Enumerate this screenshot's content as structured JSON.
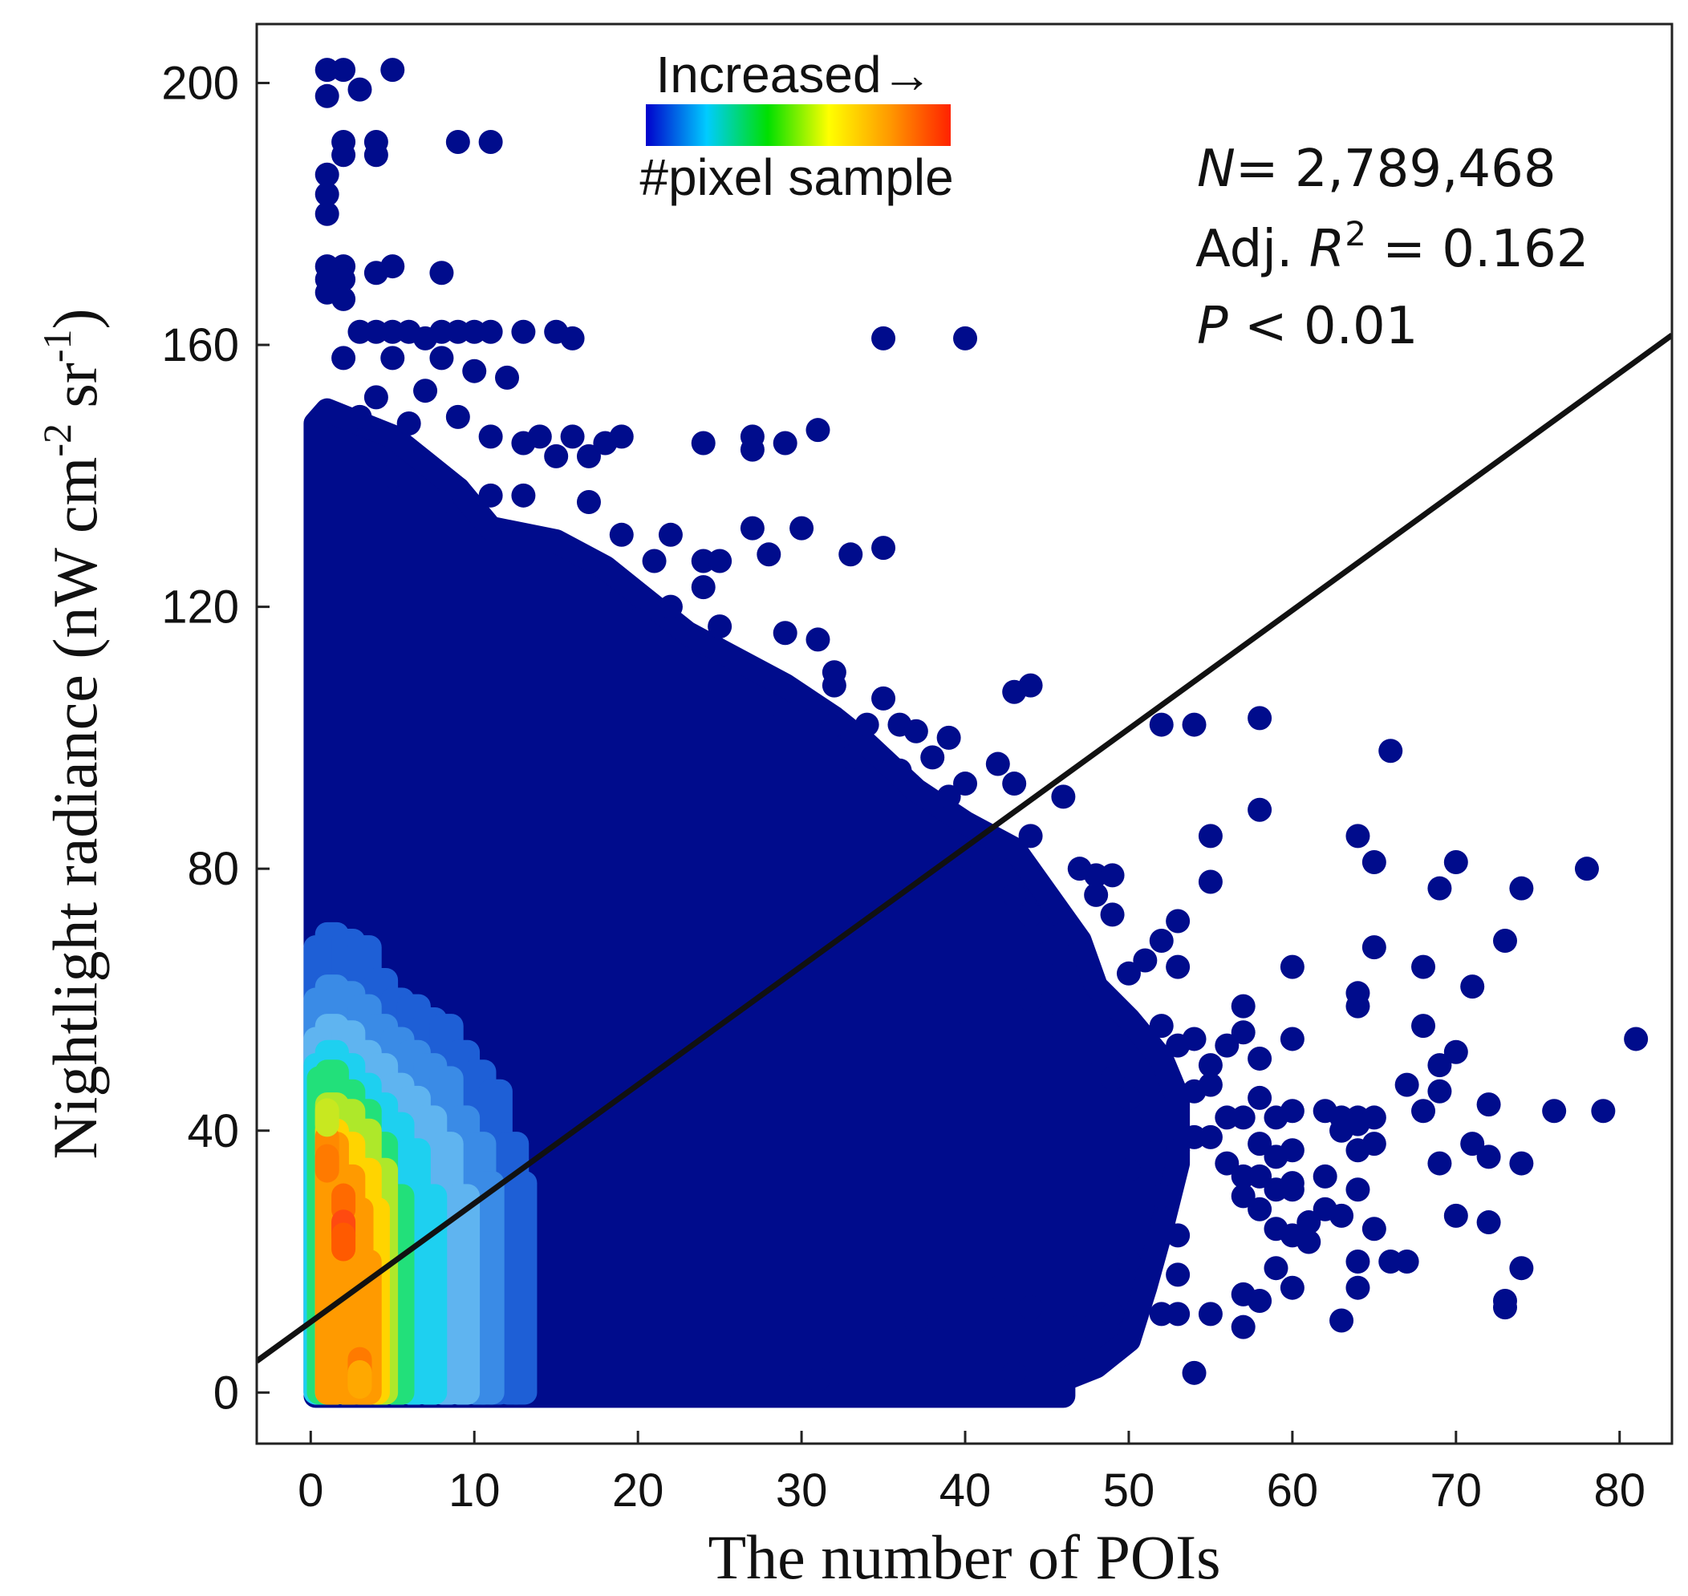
{
  "chart_data": {
    "type": "scatter",
    "title": "",
    "xlabel": "The number of POIs",
    "ylabel_main": "Nightlight radiance (nW cm",
    "ylabel_sup1": "-2",
    "ylabel_mid": " sr",
    "ylabel_sup2": "-1",
    "ylabel_close": ")",
    "xlim": [
      -3.3,
      83.2
    ],
    "ylim": [
      -7.8,
      209
    ],
    "x_ticks": [
      0,
      10,
      20,
      30,
      40,
      50,
      60,
      70,
      80
    ],
    "y_ticks": [
      0,
      40,
      80,
      120,
      160,
      200
    ],
    "grid": false,
    "colorscale": [
      "#0000cc",
      "#00ccff",
      "#00e000",
      "#ffff00",
      "#ff9900",
      "#ff2200"
    ],
    "colors": {
      "low": "#000c8c",
      "regression": "#111111"
    },
    "legend": {
      "position": "top-center",
      "top_label": "Increased→",
      "bottom_label": "#pixel sample"
    },
    "stats": {
      "n_label": "N",
      "n_value": "= 2,789,468",
      "r2_prefix": "Adj. ",
      "r2_symbol": "R",
      "r2_sup": "2",
      "r2_value": " = 0.162",
      "p_symbol": "P",
      "p_value": " < 0.01"
    },
    "regression": {
      "x": [
        -3.3,
        83.2
      ],
      "y": [
        4.8,
        161.5
      ]
    },
    "dense_region": {
      "description_free": true,
      "upper_bound": [
        [
          0.3,
          148
        ],
        [
          1,
          150
        ],
        [
          3,
          148
        ],
        [
          5,
          146
        ],
        [
          7,
          142
        ],
        [
          9,
          138
        ],
        [
          11,
          132
        ],
        [
          15,
          130
        ],
        [
          18,
          126
        ],
        [
          20,
          122
        ],
        [
          23,
          116
        ],
        [
          26,
          112
        ],
        [
          29,
          108
        ],
        [
          32,
          103
        ],
        [
          34,
          99
        ],
        [
          37,
          92
        ],
        [
          40,
          87
        ],
        [
          43,
          83
        ],
        [
          45,
          76
        ],
        [
          47,
          69
        ],
        [
          48,
          62
        ],
        [
          50,
          57
        ],
        [
          52,
          51
        ],
        [
          53,
          45
        ],
        [
          53,
          35
        ],
        [
          52,
          25
        ],
        [
          51,
          16
        ],
        [
          50,
          8
        ],
        [
          48,
          4
        ],
        [
          46,
          2
        ]
      ],
      "lower_y": 0
    },
    "density_levels": [
      {
        "level": 0,
        "color": "#1e5fd6",
        "x": [
          0.3,
          1,
          2,
          3,
          4,
          5,
          6,
          7,
          8,
          9,
          10,
          11,
          12,
          12.5
        ],
        "top": [
          68,
          70,
          69,
          68,
          63,
          60,
          59,
          57,
          56,
          52,
          49,
          46,
          38,
          32
        ]
      },
      {
        "level": 1,
        "color": "#3a8be6",
        "x": [
          0.3,
          1,
          2,
          3,
          4,
          5,
          6,
          7,
          8,
          9,
          10,
          10.5
        ],
        "top": [
          60,
          62,
          61,
          59,
          56,
          54,
          52,
          50,
          48,
          42,
          38,
          32
        ]
      },
      {
        "level": 2,
        "color": "#5fb4f0",
        "x": [
          0.3,
          1,
          2,
          3,
          4,
          5,
          6,
          7,
          8,
          9
        ],
        "top": [
          54,
          56,
          55,
          52,
          50,
          47,
          45,
          42,
          38,
          30
        ]
      },
      {
        "level": 3,
        "color": "#1ed0f0",
        "x": [
          0.3,
          1,
          2,
          3,
          4,
          5,
          6,
          7
        ],
        "top": [
          50,
          52,
          50,
          47,
          44,
          41,
          37,
          30
        ]
      },
      {
        "level": 4,
        "color": "#22e07a",
        "x": [
          0.5,
          1,
          2,
          3,
          4,
          5
        ],
        "top": [
          48,
          49,
          46,
          43,
          38,
          30
        ]
      },
      {
        "level": 5,
        "color": "#aee82a",
        "x": [
          1,
          2,
          3,
          4
        ],
        "top": [
          44,
          43,
          40,
          34
        ]
      },
      {
        "level": 6,
        "color": "#ffd400",
        "x": [
          1,
          2,
          3,
          3.5
        ],
        "top": [
          40,
          38,
          34,
          28
        ]
      },
      {
        "level": 7,
        "color": "#ff9a00",
        "x": [
          1,
          2,
          2.5,
          3
        ],
        "top": [
          38,
          33,
          28,
          20
        ]
      }
    ],
    "hot_spots": [
      {
        "x": 1,
        "y": 38,
        "color": "#ff8a00"
      },
      {
        "x": 1,
        "y": 35,
        "color": "#ff7a00"
      },
      {
        "x": 2,
        "y": 29,
        "color": "#ff6a00"
      },
      {
        "x": 2,
        "y": 25,
        "color": "#ff4a10"
      },
      {
        "x": 2,
        "y": 23,
        "color": "#ff5a00"
      },
      {
        "x": 3,
        "y": 4,
        "color": "#ff7a00"
      },
      {
        "x": 3,
        "y": 2,
        "color": "#ffa800"
      },
      {
        "x": 1,
        "y": 42,
        "color": "#c8e820"
      }
    ],
    "outliers": [
      [
        1,
        202
      ],
      [
        1,
        198
      ],
      [
        2,
        202
      ],
      [
        3,
        199
      ],
      [
        5,
        202
      ],
      [
        2,
        191
      ],
      [
        2,
        189
      ],
      [
        4,
        191
      ],
      [
        4,
        189
      ],
      [
        9,
        191
      ],
      [
        11,
        191
      ],
      [
        1,
        186
      ],
      [
        1,
        183
      ],
      [
        1,
        180
      ],
      [
        1,
        172
      ],
      [
        1,
        170
      ],
      [
        2,
        172
      ],
      [
        2,
        170
      ],
      [
        4,
        171
      ],
      [
        5,
        172
      ],
      [
        8,
        171
      ],
      [
        1,
        168
      ],
      [
        2,
        167
      ],
      [
        3,
        162
      ],
      [
        4,
        162
      ],
      [
        5,
        162
      ],
      [
        6,
        162
      ],
      [
        7,
        161
      ],
      [
        8,
        162
      ],
      [
        9,
        162
      ],
      [
        10,
        162
      ],
      [
        11,
        162
      ],
      [
        13,
        162
      ],
      [
        15,
        162
      ],
      [
        16,
        161
      ],
      [
        35,
        161
      ],
      [
        40,
        161
      ],
      [
        2,
        158
      ],
      [
        5,
        158
      ],
      [
        8,
        158
      ],
      [
        10,
        156
      ],
      [
        12,
        155
      ],
      [
        4,
        152
      ],
      [
        7,
        153
      ],
      [
        3,
        149
      ],
      [
        4,
        147
      ],
      [
        6,
        148
      ],
      [
        9,
        149
      ],
      [
        11,
        146
      ],
      [
        13,
        145
      ],
      [
        14,
        146
      ],
      [
        15,
        143
      ],
      [
        16,
        146
      ],
      [
        17,
        143
      ],
      [
        18,
        145
      ],
      [
        19,
        146
      ],
      [
        24,
        145
      ],
      [
        27,
        146
      ],
      [
        27,
        144
      ],
      [
        29,
        145
      ],
      [
        31,
        147
      ],
      [
        35,
        129
      ],
      [
        33,
        128
      ],
      [
        28,
        128
      ],
      [
        30,
        132
      ],
      [
        27,
        132
      ],
      [
        24,
        127
      ],
      [
        25,
        127
      ],
      [
        22,
        131
      ],
      [
        21,
        127
      ],
      [
        17,
        136
      ],
      [
        19,
        131
      ],
      [
        11,
        137
      ],
      [
        13,
        137
      ],
      [
        8,
        136
      ],
      [
        9,
        138
      ],
      [
        5,
        140
      ],
      [
        24,
        123
      ],
      [
        20,
        118
      ],
      [
        22,
        120
      ],
      [
        25,
        117
      ],
      [
        29,
        116
      ],
      [
        31,
        115
      ],
      [
        32,
        110
      ],
      [
        32,
        108
      ],
      [
        30,
        106
      ],
      [
        28,
        105
      ],
      [
        35,
        106
      ],
      [
        32,
        102
      ],
      [
        34,
        102
      ],
      [
        36,
        102
      ],
      [
        37,
        101
      ],
      [
        39,
        100
      ],
      [
        33,
        97
      ],
      [
        36,
        95
      ],
      [
        38,
        97
      ],
      [
        39,
        91
      ],
      [
        40,
        93
      ],
      [
        42,
        96
      ],
      [
        43,
        107
      ],
      [
        44,
        108
      ],
      [
        43,
        93
      ],
      [
        46,
        91
      ],
      [
        42,
        83
      ],
      [
        44,
        85
      ],
      [
        38,
        84
      ],
      [
        40,
        82
      ],
      [
        47,
        80
      ],
      [
        48,
        79
      ],
      [
        49,
        79
      ],
      [
        48,
        76
      ],
      [
        49,
        73
      ],
      [
        47,
        67
      ],
      [
        50,
        64
      ],
      [
        51,
        66
      ],
      [
        52,
        69
      ],
      [
        53,
        72
      ],
      [
        53,
        65
      ],
      [
        52,
        56
      ],
      [
        53,
        53
      ],
      [
        54,
        54
      ],
      [
        55,
        50
      ],
      [
        54,
        46
      ],
      [
        55,
        47
      ],
      [
        56,
        53
      ],
      [
        57,
        55
      ],
      [
        57,
        59
      ],
      [
        58,
        51
      ],
      [
        58,
        45
      ],
      [
        59,
        42
      ],
      [
        60,
        43
      ],
      [
        56,
        42
      ],
      [
        57,
        42
      ],
      [
        58,
        38
      ],
      [
        59,
        36
      ],
      [
        60,
        37
      ],
      [
        57,
        33
      ],
      [
        58,
        33
      ],
      [
        59,
        31
      ],
      [
        60,
        32
      ],
      [
        54,
        39
      ],
      [
        55,
        39
      ],
      [
        56,
        35
      ],
      [
        57,
        30
      ],
      [
        58,
        28
      ],
      [
        59,
        25
      ],
      [
        60,
        24
      ],
      [
        61,
        26
      ],
      [
        61,
        23
      ],
      [
        62,
        33
      ],
      [
        62,
        43
      ],
      [
        63,
        42
      ],
      [
        64,
        42
      ],
      [
        64,
        41
      ],
      [
        65,
        42
      ],
      [
        63,
        40
      ],
      [
        64,
        37
      ],
      [
        64,
        31
      ],
      [
        63,
        27
      ],
      [
        65,
        25
      ],
      [
        64,
        20
      ],
      [
        66,
        20
      ],
      [
        67,
        20
      ],
      [
        64,
        16
      ],
      [
        63,
        11
      ],
      [
        60,
        16
      ],
      [
        59,
        19
      ],
      [
        57,
        10
      ],
      [
        57,
        15
      ],
      [
        58,
        14
      ],
      [
        55,
        12
      ],
      [
        53,
        12
      ],
      [
        52,
        12
      ],
      [
        54,
        3
      ],
      [
        48,
        5
      ],
      [
        52,
        102
      ],
      [
        54,
        102
      ],
      [
        58,
        103
      ],
      [
        58,
        89
      ],
      [
        55,
        85
      ],
      [
        55,
        78
      ],
      [
        64,
        85
      ],
      [
        65,
        81
      ],
      [
        66,
        98
      ],
      [
        70,
        81
      ],
      [
        69,
        77
      ],
      [
        68,
        65
      ],
      [
        60,
        65
      ],
      [
        65,
        68
      ],
      [
        64,
        59
      ],
      [
        64,
        61
      ],
      [
        60,
        54
      ],
      [
        68,
        56
      ],
      [
        67,
        47
      ],
      [
        69,
        50
      ],
      [
        70,
        52
      ],
      [
        71,
        62
      ],
      [
        69,
        46
      ],
      [
        68,
        43
      ],
      [
        72,
        44
      ],
      [
        71,
        38
      ],
      [
        72,
        36
      ],
      [
        73,
        69
      ],
      [
        74,
        77
      ],
      [
        74,
        35
      ],
      [
        70,
        27
      ],
      [
        72,
        26
      ],
      [
        73,
        14
      ],
      [
        73,
        13
      ],
      [
        74,
        19
      ],
      [
        76,
        43
      ],
      [
        78,
        80
      ],
      [
        79,
        43
      ],
      [
        81,
        54
      ],
      [
        65,
        38
      ],
      [
        69,
        35
      ],
      [
        62,
        28
      ],
      [
        60,
        31
      ],
      [
        53,
        37
      ],
      [
        51,
        40
      ],
      [
        50,
        45
      ],
      [
        49,
        48
      ],
      [
        48,
        52
      ],
      [
        45,
        56
      ],
      [
        44,
        60
      ],
      [
        45,
        67
      ],
      [
        44,
        73
      ],
      [
        43,
        76
      ],
      [
        46,
        70
      ],
      [
        40,
        58
      ],
      [
        38,
        61
      ],
      [
        36,
        55
      ],
      [
        50,
        34
      ],
      [
        52,
        30
      ],
      [
        53,
        24
      ],
      [
        53,
        18
      ],
      [
        50,
        20
      ],
      [
        48,
        17
      ],
      [
        49,
        12
      ],
      [
        47,
        10
      ],
      [
        44,
        13
      ],
      [
        42,
        16
      ],
      [
        41,
        9
      ],
      [
        39,
        8
      ],
      [
        38,
        3
      ],
      [
        41,
        6
      ],
      [
        37,
        11
      ],
      [
        43,
        3
      ],
      [
        32,
        3
      ],
      [
        34,
        3
      ],
      [
        36,
        5
      ],
      [
        26,
        1
      ],
      [
        29,
        1
      ],
      [
        31,
        2
      ]
    ]
  }
}
